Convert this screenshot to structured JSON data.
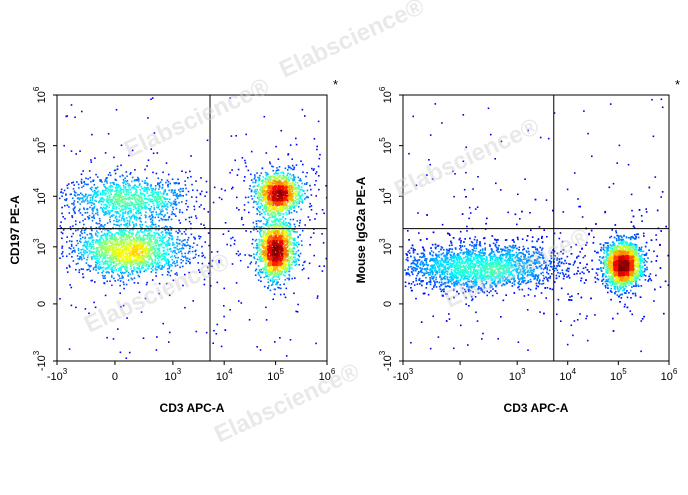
{
  "watermark": "Elabscience®",
  "chart_data": [
    {
      "type": "scatter",
      "style": "density-dot-plot",
      "xlabel": "CD3 APC-A",
      "ylabel": "CD197 PE-A",
      "corner_mark": "*",
      "scale": "biexponential",
      "x_ticks": [
        {
          "b": "-10",
          "e": "3"
        },
        {
          "b": "0",
          "e": ""
        },
        {
          "b": "10",
          "e": "3"
        },
        {
          "b": "10",
          "e": "4"
        },
        {
          "b": "10",
          "e": "5"
        },
        {
          "b": "10",
          "e": "6"
        }
      ],
      "y_ticks": [
        {
          "b": "-10",
          "e": "3"
        },
        {
          "b": "0",
          "e": ""
        },
        {
          "b": "10",
          "e": "3"
        },
        {
          "b": "10",
          "e": "4"
        },
        {
          "b": "10",
          "e": "5"
        },
        {
          "b": "10",
          "e": "6"
        }
      ],
      "gate": {
        "x": 5300,
        "y": 2300
      },
      "populations": [
        {
          "x": 100,
          "y": 9000,
          "n": 1100,
          "sx": 0.32,
          "sy": 0.12
        },
        {
          "x": 100,
          "y": 900,
          "n": 1900,
          "sx": 0.3,
          "sy": 0.14
        },
        {
          "x": 110000,
          "y": 12000,
          "n": 1300,
          "sx": 0.12,
          "sy": 0.11
        },
        {
          "x": 100000,
          "y": 900,
          "n": 1600,
          "sx": 0.1,
          "sy": 0.16
        }
      ]
    },
    {
      "type": "scatter",
      "style": "density-dot-plot",
      "xlabel": "CD3 APC-A",
      "ylabel": "Mouse IgG2a PE-A",
      "corner_mark": "*",
      "scale": "biexponential",
      "x_ticks": [
        {
          "b": "-10",
          "e": "3"
        },
        {
          "b": "0",
          "e": ""
        },
        {
          "b": "10",
          "e": "3"
        },
        {
          "b": "10",
          "e": "4"
        },
        {
          "b": "10",
          "e": "5"
        },
        {
          "b": "10",
          "e": "6"
        }
      ],
      "y_ticks": [
        {
          "b": "-10",
          "e": "3"
        },
        {
          "b": "0",
          "e": ""
        },
        {
          "b": "10",
          "e": "3"
        },
        {
          "b": "10",
          "e": "4"
        },
        {
          "b": "10",
          "e": "5"
        },
        {
          "b": "10",
          "e": "6"
        }
      ],
      "gate": {
        "x": 5300,
        "y": 2300
      },
      "populations": [
        {
          "x": 150,
          "y": 400,
          "n": 3000,
          "sx": 0.45,
          "sy": 0.12
        },
        {
          "x": 120000,
          "y": 450,
          "n": 3000,
          "sx": 0.1,
          "sy": 0.12
        }
      ]
    }
  ]
}
